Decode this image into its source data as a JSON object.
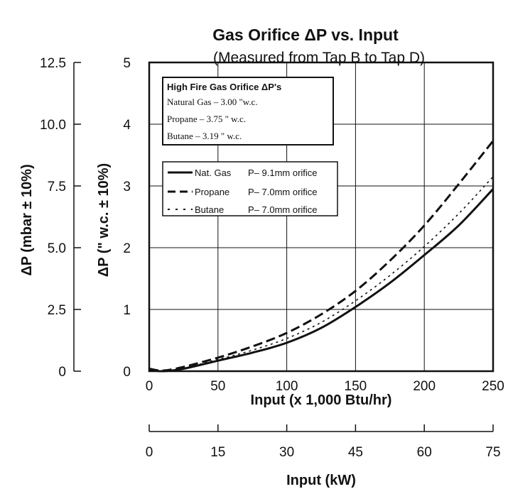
{
  "chart_data": {
    "type": "line",
    "title": "Gas Orifice ΔP vs. Input",
    "subtitle": "(Measured from Tap B to Tap D)",
    "xlabel": "Input (x 1,000 Btu/hr)",
    "x2label": "Input (kW)",
    "ylabel": "ΔP (\" w.c. ± 10%)",
    "y2label": "ΔP (mbar ± 10%)",
    "xlim": [
      0,
      250
    ],
    "ylim": [
      0,
      5
    ],
    "x_ticks": [
      "0",
      "50",
      "100",
      "150",
      "200",
      "250"
    ],
    "x2_ticks": [
      "0",
      "15",
      "30",
      "45",
      "60",
      "75"
    ],
    "y_ticks": [
      "0",
      "1",
      "2",
      "3",
      "4",
      "5"
    ],
    "y2_ticks": [
      "0",
      "2.5",
      "5.0",
      "7.5",
      "10.0",
      "12.5"
    ],
    "grid": true,
    "info_box": {
      "title": "High Fire Gas Orifice ΔP's",
      "lines": [
        "Natural Gas – 3.00 \"w.c.",
        "Propane – 3.75 \" w.c.",
        "Butane – 3.19 \" w.c."
      ]
    },
    "legend": [
      {
        "name": "Nat. Gas",
        "detail": "P– 9.1mm orifice"
      },
      {
        "name": "Propane",
        "detail": "P– 7.0mm orifice"
      },
      {
        "name": "Butane",
        "detail": "P– 7.0mm orifice"
      }
    ],
    "x": [
      0,
      10,
      25,
      50,
      75,
      100,
      125,
      150,
      175,
      200,
      225,
      250
    ],
    "series": [
      {
        "name": "Nat. Gas",
        "style": "solid",
        "values": [
          0.02,
          0.0,
          0.04,
          0.17,
          0.3,
          0.46,
          0.7,
          1.04,
          1.43,
          1.88,
          2.36,
          2.95
        ]
      },
      {
        "name": "Propane",
        "style": "dashed",
        "values": [
          0.04,
          0.01,
          0.07,
          0.22,
          0.4,
          0.62,
          0.92,
          1.3,
          1.79,
          2.36,
          3.03,
          3.73
        ]
      },
      {
        "name": "Butane",
        "style": "dotted",
        "values": [
          0.03,
          0.0,
          0.05,
          0.19,
          0.34,
          0.53,
          0.79,
          1.14,
          1.55,
          2.02,
          2.55,
          3.15
        ]
      }
    ]
  }
}
